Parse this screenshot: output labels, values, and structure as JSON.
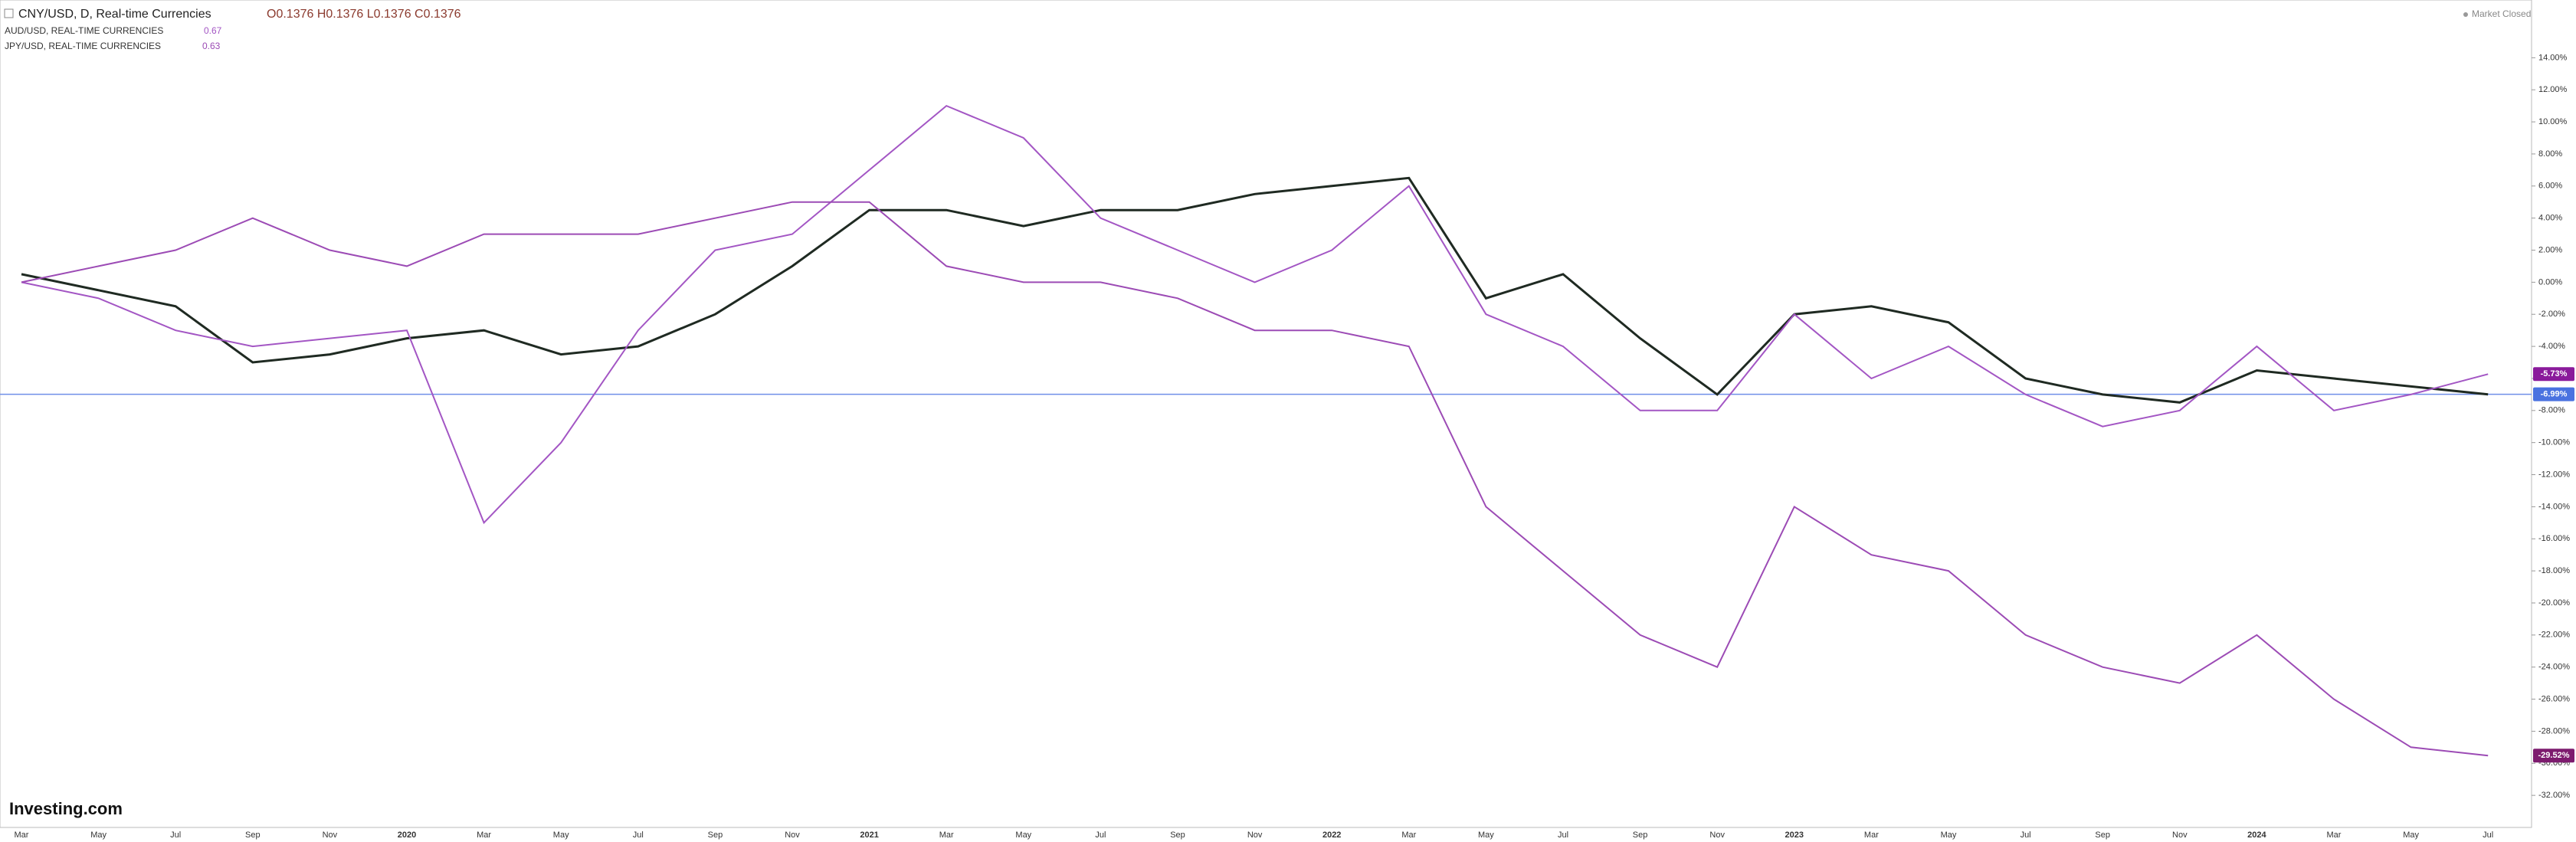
{
  "chart_data": {
    "type": "line",
    "categories": [
      "Mar",
      "May",
      "Jul",
      "Sep",
      "Nov",
      "2020",
      "Mar",
      "May",
      "Jul",
      "Sep",
      "Nov",
      "2021",
      "Mar",
      "May",
      "Jul",
      "Sep",
      "Nov",
      "2022",
      "Mar",
      "May",
      "Jul",
      "Sep",
      "Nov",
      "2023",
      "Mar",
      "May",
      "Jul",
      "Sep",
      "Nov",
      "2024",
      "Mar",
      "May",
      "Jul"
    ],
    "ohlc": "O0.1376 H0.1376 L0.1376 C0.1376",
    "status": "Market Closed",
    "brand": "Investing.com",
    "series": [
      {
        "name": "CNY/USD, D, Real-time Currencies",
        "color": "#1f2a22",
        "values": [
          0.5,
          -0.5,
          -1.5,
          -5,
          -4.5,
          -3.5,
          -3,
          -4.5,
          -4,
          -2,
          1,
          4.5,
          4.5,
          3.5,
          4.5,
          4.5,
          5.5,
          6,
          6.5,
          -1,
          0.5,
          -3.5,
          -7,
          -2,
          -1.5,
          -2.5,
          -6,
          -7,
          -7.5,
          -5.5,
          -6,
          -6.5,
          -6.99
        ],
        "last_label": "-6.99%",
        "tag_color": "#4a72e0"
      },
      {
        "name": "AUD/USD, REAL-TIME CURRENCIES",
        "color": "#a356c4",
        "last_price": "0.67",
        "values": [
          0,
          -1,
          -3,
          -4,
          -3.5,
          -3,
          -15,
          -10,
          -3,
          2,
          3,
          7,
          11,
          9,
          4,
          2,
          0,
          2,
          6,
          -2,
          -4,
          -8,
          -8,
          -2,
          -6,
          -4,
          -7,
          -9,
          -8,
          -4,
          -8,
          -7,
          -5.73
        ],
        "last_label": "-5.73%",
        "tag_color": "#8a1a9b"
      },
      {
        "name": "JPY/USD, REAL-TIME CURRENCIES",
        "color": "#9c4bb5",
        "last_price": "0.63",
        "values": [
          0,
          1,
          2,
          4,
          2,
          1,
          3,
          3,
          3,
          4,
          5,
          5,
          1,
          0,
          0,
          -1,
          -3,
          -3,
          -4,
          -14,
          -18,
          -22,
          -24,
          -14,
          -17,
          -18,
          -22,
          -24,
          -25,
          -22,
          -26,
          -29,
          -29.52
        ],
        "last_label": "-29.52%",
        "tag_color": "#7d1b6e"
      }
    ],
    "ylim": [
      -34,
      17.6
    ],
    "yticks": [
      {
        "value": 14,
        "label": "14.00%"
      },
      {
        "value": 12,
        "label": "12.00%"
      },
      {
        "value": 10,
        "label": "10.00%"
      },
      {
        "value": 8,
        "label": "8.00%"
      },
      {
        "value": 6,
        "label": "6.00%"
      },
      {
        "value": 4,
        "label": "4.00%"
      },
      {
        "value": 2,
        "label": "2.00%"
      },
      {
        "value": 0,
        "label": "0.00%"
      },
      {
        "value": -2,
        "label": "-2.00%"
      },
      {
        "value": -4,
        "label": "-4.00%"
      },
      {
        "value": -6,
        "label": "-6.00%"
      },
      {
        "value": -8,
        "label": "-8.00%"
      },
      {
        "value": -10,
        "label": "-10.00%"
      },
      {
        "value": -12,
        "label": "-12.00%"
      },
      {
        "value": -14,
        "label": "-14.00%"
      },
      {
        "value": -16,
        "label": "-16.00%"
      },
      {
        "value": -18,
        "label": "-18.00%"
      },
      {
        "value": -20,
        "label": "-20.00%"
      },
      {
        "value": -22,
        "label": "-22.00%"
      },
      {
        "value": -24,
        "label": "-24.00%"
      },
      {
        "value": -26,
        "label": "-26.00%"
      },
      {
        "value": -28,
        "label": "-28.00%"
      },
      {
        "value": -30,
        "label": "-30.00%"
      },
      {
        "value": -32,
        "label": "-32.00%"
      }
    ],
    "price_line": -6.99
  }
}
